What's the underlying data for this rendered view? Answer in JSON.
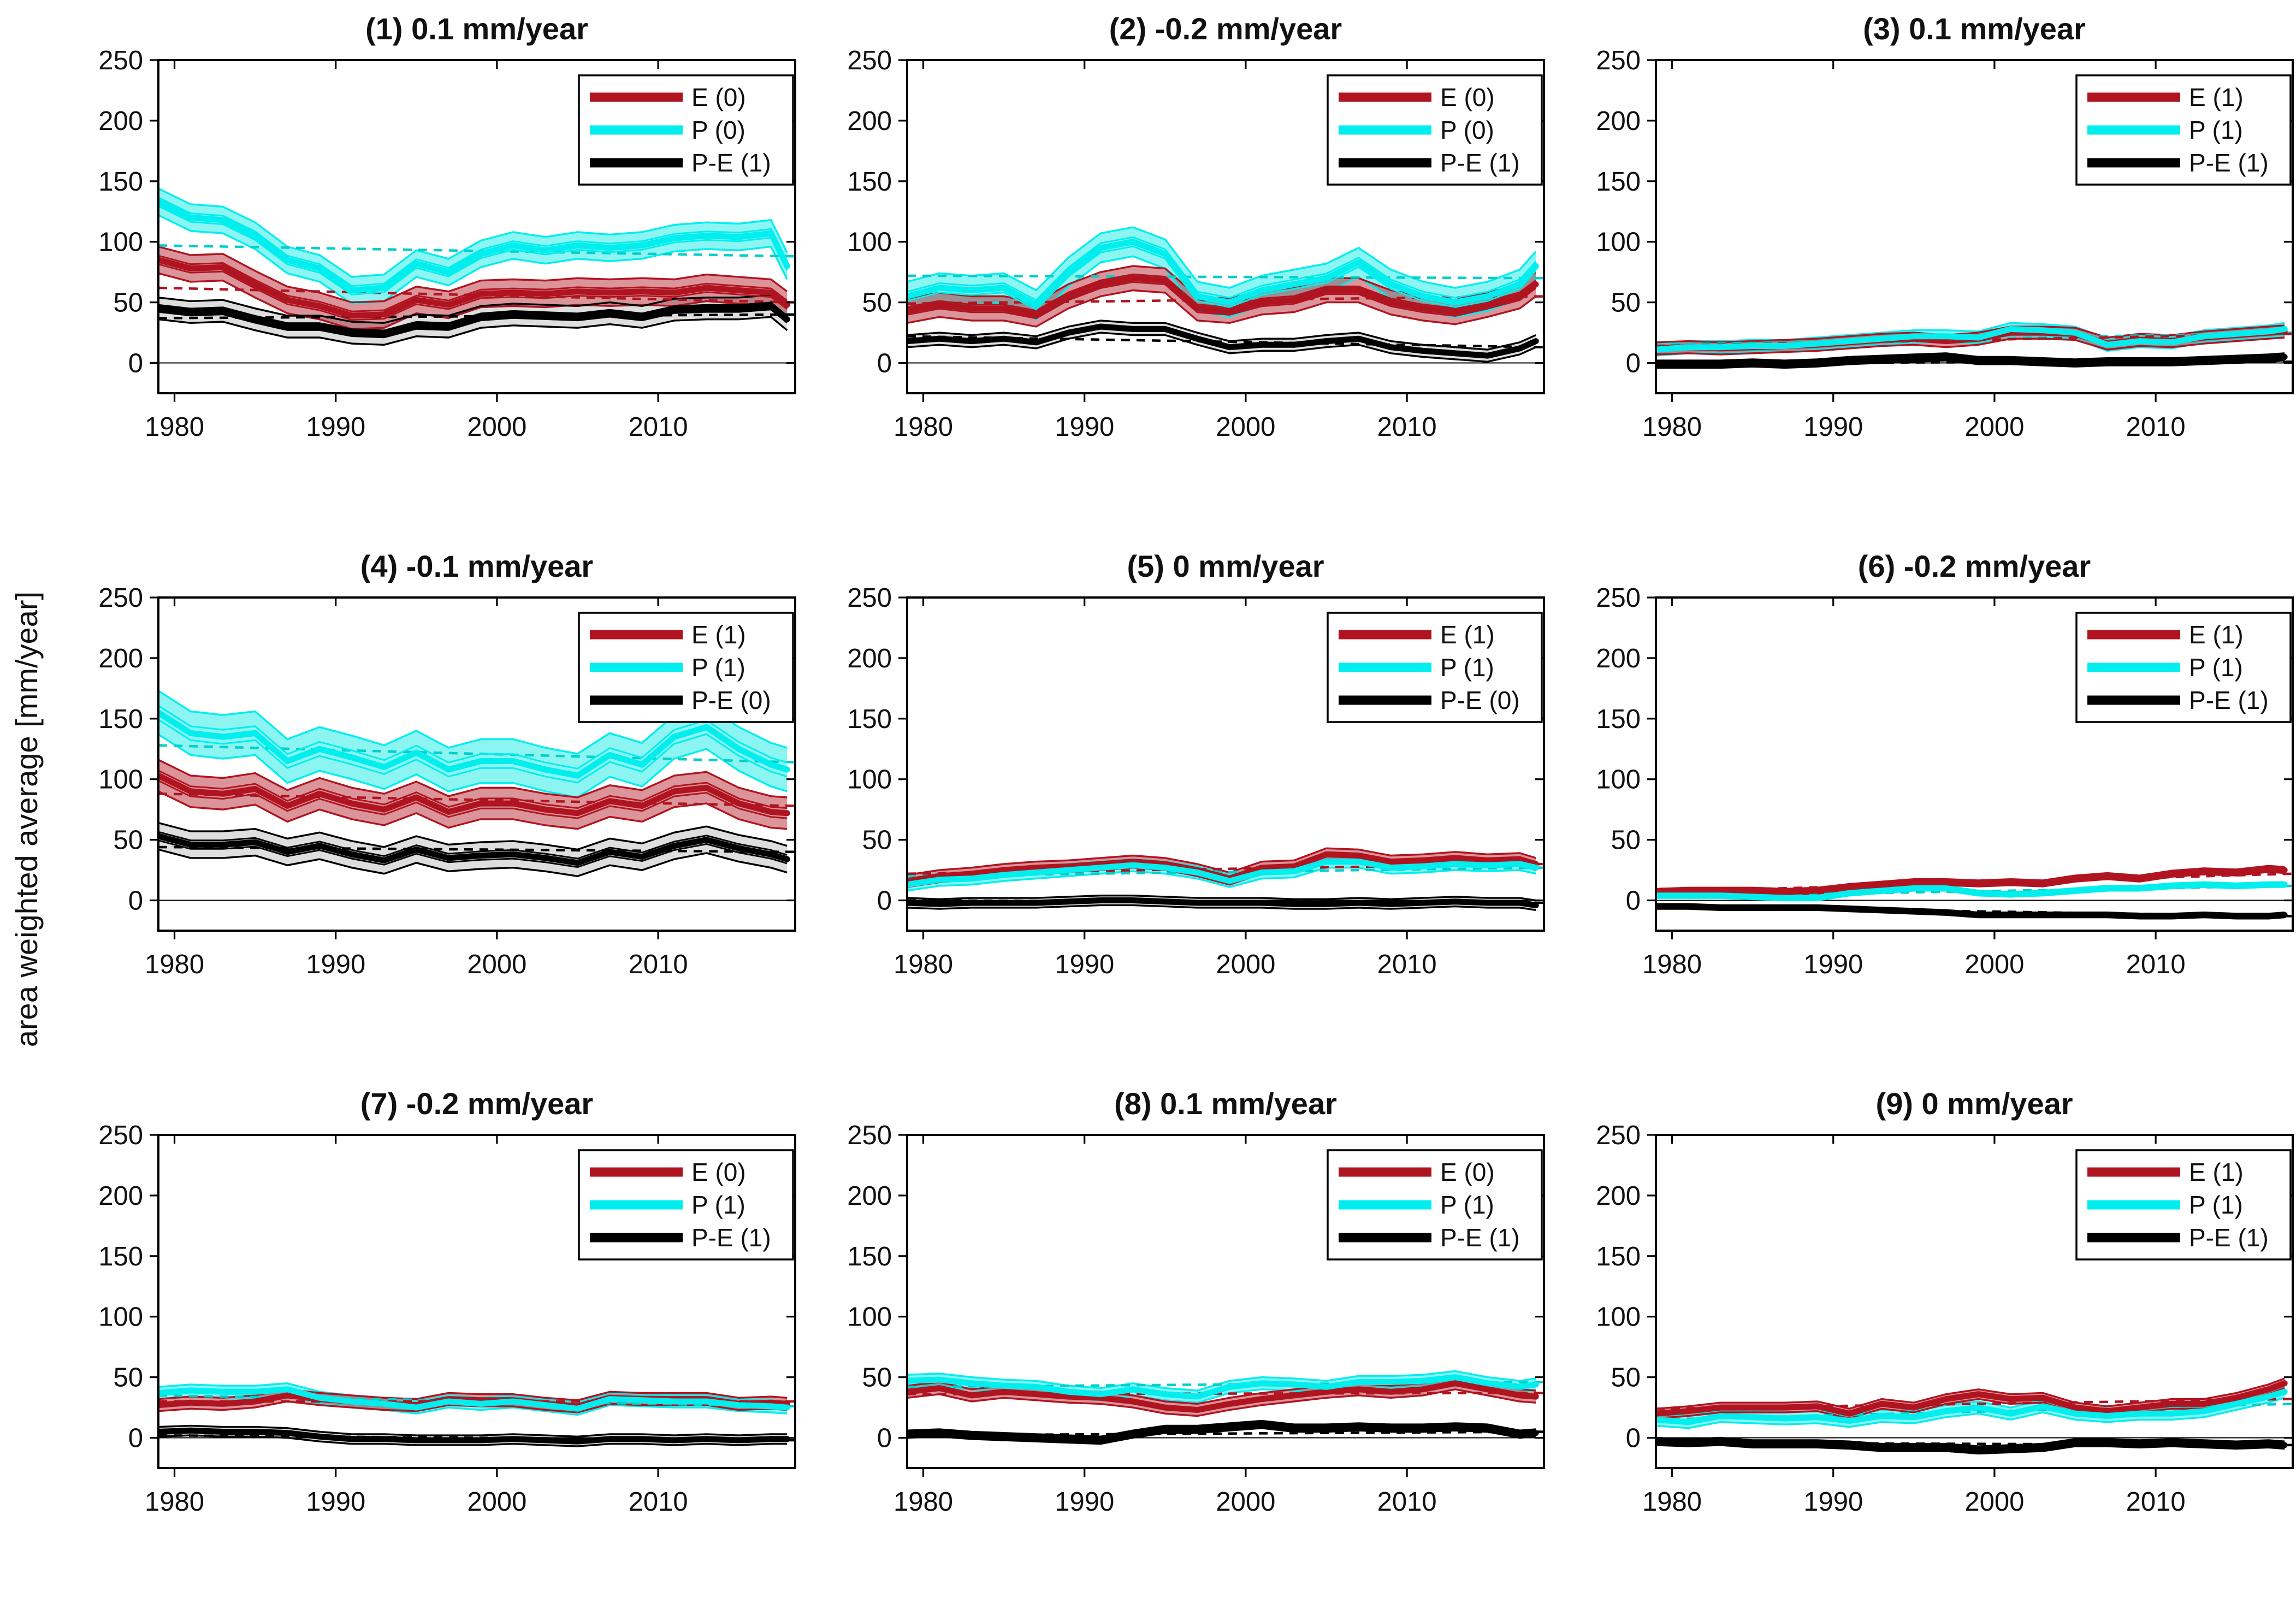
{
  "figure": {
    "ylabel": "area weighted average [mm/year]",
    "background": "#FFFFFF",
    "axis_color": "#000000",
    "text_color": "#111111"
  },
  "chart_data": {
    "type": "line",
    "title": "",
    "ylabel": "area weighted average [mm/year]",
    "xlabel": "",
    "grid": false,
    "legend_position": "top-right-inside",
    "xlim": [
      1979,
      2018.5
    ],
    "ylim": [
      -25,
      250
    ],
    "xticks": [
      1980,
      1990,
      2000,
      2010
    ],
    "yticks": [
      0,
      50,
      100,
      150,
      200,
      250
    ],
    "x_years": [
      1979,
      1981,
      1983,
      1985,
      1987,
      1989,
      1991,
      1993,
      1995,
      1997,
      1999,
      2001,
      2003,
      2005,
      2007,
      2009,
      2011,
      2013,
      2015,
      2017,
      2018
    ],
    "series_colors": {
      "E": {
        "center": "#B01420",
        "fill": "rgba(176,20,32,0.45)",
        "dash": "#B01420"
      },
      "P": {
        "center": "#00EEEE",
        "fill": "rgba(0,230,224,0.45)",
        "dash": "#00CFCB"
      },
      "PE": {
        "center": "#000000",
        "fill": "rgba(0,0,0,0.13)",
        "dash": "#000000"
      }
    },
    "panels": [
      {
        "index": 1,
        "title": "(1) 0.1 mm/year",
        "series": [
          {
            "key": "E",
            "name": "E (0)",
            "band_halfwidth": 11,
            "trend": [
              62,
              50
            ],
            "values": [
              85,
              78,
              79,
              65,
              52,
              47,
              39,
              40,
              52,
              48,
              57,
              58,
              57,
              59,
              58,
              59,
              58,
              62,
              60,
              58,
              48
            ]
          },
          {
            "key": "P",
            "name": "P (0)",
            "band_halfwidth": 11,
            "trend": [
              97,
              88
            ],
            "values": [
              133,
              120,
              118,
              105,
              85,
              78,
              60,
              62,
              82,
              75,
              90,
              97,
              93,
              97,
              95,
              97,
              103,
              105,
              104,
              107,
              80
            ]
          },
          {
            "key": "PE",
            "name": "P-E (1)",
            "band_halfwidth": 9,
            "trend": [
              37,
              40
            ],
            "values": [
              45,
              42,
              43,
              36,
              30,
              30,
              25,
              24,
              31,
              30,
              38,
              40,
              39,
              38,
              41,
              38,
              44,
              45,
              45,
              47,
              36
            ]
          }
        ]
      },
      {
        "index": 2,
        "title": "(2) -0.2 mm/year",
        "series": [
          {
            "key": "E",
            "name": "E (0)",
            "band_halfwidth": 10,
            "trend": [
              49,
              55
            ],
            "values": [
              43,
              48,
              45,
              45,
              40,
              55,
              65,
              70,
              68,
              45,
              43,
              50,
              52,
              60,
              60,
              50,
              45,
              42,
              48,
              55,
              65
            ]
          },
          {
            "key": "P",
            "name": "P (0)",
            "band_halfwidth": 12,
            "trend": [
              72,
              70
            ],
            "values": [
              55,
              62,
              60,
              62,
              48,
              75,
              95,
              100,
              90,
              55,
              50,
              60,
              65,
              70,
              83,
              65,
              55,
              50,
              55,
              65,
              80
            ]
          },
          {
            "key": "PE",
            "name": "P-E (1)",
            "band_halfwidth": 5,
            "trend": [
              22,
              13
            ],
            "values": [
              18,
              20,
              18,
              20,
              17,
              25,
              30,
              28,
              28,
              20,
              13,
              15,
              15,
              18,
              20,
              13,
              10,
              8,
              6,
              12,
              18
            ]
          }
        ]
      },
      {
        "index": 3,
        "title": "(3) 0.1 mm/year",
        "series": [
          {
            "key": "E",
            "name": "E (1)",
            "band_halfwidth": 5,
            "trend": [
              14,
              24
            ],
            "values": [
              12,
              13,
              12,
              13,
              14,
              15,
              17,
              19,
              20,
              18,
              20,
              25,
              25,
              24,
              16,
              19,
              18,
              21,
              23,
              25,
              26
            ]
          },
          {
            "key": "P",
            "name": "P (1)",
            "band_halfwidth": 5,
            "trend": [
              15,
              25
            ],
            "values": [
              11,
              13,
              13,
              14,
              14,
              16,
              18,
              20,
              22,
              22,
              21,
              28,
              27,
              25,
              15,
              18,
              17,
              22,
              24,
              26,
              28
            ]
          },
          {
            "key": "PE",
            "name": "P-E (1)",
            "band_halfwidth": 3,
            "trend": [
              0,
              1
            ],
            "values": [
              -1,
              -1,
              -1,
              0,
              -1,
              0,
              2,
              3,
              4,
              5,
              2,
              2,
              1,
              0,
              1,
              1,
              1,
              2,
              3,
              4,
              5
            ]
          }
        ]
      },
      {
        "index": 4,
        "title": "(4) -0.1 mm/year",
        "series": [
          {
            "key": "E",
            "name": "E (1)",
            "band_halfwidth": 13,
            "trend": [
              88,
              78
            ],
            "values": [
              103,
              90,
              88,
              92,
              78,
              88,
              80,
              75,
              85,
              73,
              80,
              80,
              75,
              72,
              82,
              78,
              90,
              93,
              80,
              73,
              72
            ]
          },
          {
            "key": "P",
            "name": "P (1)",
            "band_halfwidth": 18,
            "trend": [
              128,
              114
            ],
            "values": [
              155,
              138,
              135,
              138,
              115,
              125,
              118,
              110,
              122,
              108,
              115,
              115,
              108,
              103,
              120,
              112,
              135,
              143,
              125,
              112,
              108
            ]
          },
          {
            "key": "PE",
            "name": "P-E (0)",
            "band_halfwidth": 11,
            "trend": [
              44,
              40
            ],
            "values": [
              53,
              46,
              46,
              48,
              40,
              45,
              38,
              33,
              42,
              35,
              37,
              38,
              35,
              31,
              40,
              36,
              45,
              50,
              43,
              38,
              34
            ]
          }
        ]
      },
      {
        "index": 5,
        "title": "(5) 0 mm/year",
        "series": [
          {
            "key": "E",
            "name": "E (1)",
            "band_halfwidth": 5,
            "trend": [
              22,
              30
            ],
            "values": [
              16,
              20,
              22,
              25,
              27,
              28,
              30,
              32,
              30,
              25,
              18,
              27,
              28,
              38,
              37,
              32,
              33,
              35,
              33,
              34,
              30
            ]
          },
          {
            "key": "P",
            "name": "P (1)",
            "band_halfwidth": 5,
            "trend": [
              20,
              27
            ],
            "values": [
              13,
              17,
              18,
              21,
              23,
              25,
              27,
              29,
              27,
              23,
              16,
              23,
              24,
              32,
              32,
              27,
              28,
              30,
              29,
              30,
              27
            ]
          },
          {
            "key": "PE",
            "name": "P-E (0)",
            "band_halfwidth": 4,
            "trend": [
              0,
              -2
            ],
            "values": [
              -2,
              -3,
              -2,
              -2,
              -2,
              -1,
              0,
              0,
              -1,
              -2,
              -2,
              -2,
              -3,
              -3,
              -2,
              -3,
              -2,
              -1,
              -2,
              -2,
              -4
            ]
          }
        ]
      },
      {
        "index": 6,
        "title": "(6) -0.2 mm/year",
        "series": [
          {
            "key": "E",
            "name": "E (1)",
            "band_halfwidth": 2.5,
            "trend": [
              7,
              22
            ],
            "values": [
              7,
              8,
              8,
              8,
              7,
              8,
              11,
              13,
              15,
              15,
              14,
              15,
              14,
              18,
              20,
              18,
              22,
              24,
              23,
              26,
              25
            ]
          },
          {
            "key": "P",
            "name": "P (1)",
            "band_halfwidth": 2,
            "trend": [
              3,
              12
            ],
            "values": [
              4,
              4,
              4,
              3,
              2,
              2,
              6,
              8,
              10,
              10,
              6,
              5,
              6,
              8,
              10,
              10,
              12,
              13,
              12,
              13,
              13
            ]
          },
          {
            "key": "PE",
            "name": "P-E (1)",
            "band_halfwidth": 2,
            "trend": [
              -5,
              -13
            ],
            "values": [
              -5,
              -5,
              -6,
              -6,
              -6,
              -6,
              -7,
              -8,
              -9,
              -10,
              -12,
              -12,
              -12,
              -12,
              -12,
              -13,
              -13,
              -12,
              -13,
              -13,
              -12
            ]
          }
        ]
      },
      {
        "index": 7,
        "title": "(7) -0.2 mm/year",
        "series": [
          {
            "key": "E",
            "name": "E (0)",
            "band_halfwidth": 5,
            "trend": [
              30,
              30
            ],
            "values": [
              27,
              29,
              28,
              30,
              35,
              32,
              30,
              28,
              27,
              32,
              31,
              31,
              28,
              26,
              33,
              32,
              32,
              32,
              28,
              29,
              28
            ]
          },
          {
            "key": "P",
            "name": "P (1)",
            "band_halfwidth": 5,
            "trend": [
              35,
              26
            ],
            "values": [
              37,
              39,
              38,
              38,
              40,
              33,
              30,
              28,
              25,
              30,
              28,
              30,
              27,
              24,
              32,
              31,
              30,
              30,
              27,
              26,
              25
            ]
          },
          {
            "key": "PE",
            "name": "P-E (1)",
            "band_halfwidth": 4,
            "trend": [
              2,
              -2
            ],
            "values": [
              5,
              6,
              5,
              5,
              4,
              1,
              -1,
              -1,
              -2,
              -2,
              -2,
              -1,
              -2,
              -3,
              -1,
              -1,
              -2,
              -1,
              -2,
              -1,
              -1
            ]
          }
        ]
      },
      {
        "index": 8,
        "title": "(8) 0.1 mm/year",
        "series": [
          {
            "key": "E",
            "name": "E (0)",
            "band_halfwidth": 5,
            "trend": [
              36,
              37
            ],
            "values": [
              38,
              41,
              35,
              38,
              36,
              34,
              33,
              30,
              25,
              23,
              28,
              32,
              35,
              38,
              40,
              38,
              40,
              45,
              40,
              35,
              34
            ]
          },
          {
            "key": "P",
            "name": "P (1)",
            "band_halfwidth": 5,
            "trend": [
              42,
              46
            ],
            "values": [
              47,
              48,
              45,
              43,
              42,
              38,
              36,
              40,
              36,
              34,
              42,
              45,
              44,
              42,
              46,
              46,
              47,
              50,
              45,
              42,
              44
            ]
          },
          {
            "key": "PE",
            "name": "P-E (1)",
            "band_halfwidth": 3,
            "trend": [
              2,
              5
            ],
            "values": [
              3,
              4,
              2,
              1,
              0,
              -1,
              -2,
              3,
              7,
              7,
              9,
              11,
              8,
              8,
              9,
              8,
              8,
              9,
              8,
              3,
              4
            ]
          }
        ]
      },
      {
        "index": 9,
        "title": "(9) 0 mm/year",
        "series": [
          {
            "key": "E",
            "name": "E (1)",
            "band_halfwidth": 4,
            "trend": [
              24,
              32
            ],
            "values": [
              20,
              22,
              25,
              25,
              25,
              26,
              20,
              28,
              25,
              32,
              36,
              32,
              33,
              25,
              22,
              25,
              28,
              28,
              33,
              40,
              45
            ]
          },
          {
            "key": "P",
            "name": "P (1)",
            "band_halfwidth": 5,
            "trend": [
              15,
              28
            ],
            "values": [
              15,
              13,
              18,
              17,
              16,
              17,
              14,
              18,
              17,
              22,
              25,
              20,
              26,
              20,
              18,
              20,
              20,
              22,
              28,
              34,
              38
            ]
          },
          {
            "key": "PE",
            "name": "P-E (1)",
            "band_halfwidth": 3,
            "trend": [
              -4,
              -6
            ],
            "values": [
              -3,
              -4,
              -3,
              -5,
              -5,
              -5,
              -6,
              -8,
              -8,
              -8,
              -10,
              -9,
              -8,
              -4,
              -4,
              -5,
              -4,
              -5,
              -6,
              -5,
              -6
            ]
          }
        ]
      }
    ]
  }
}
